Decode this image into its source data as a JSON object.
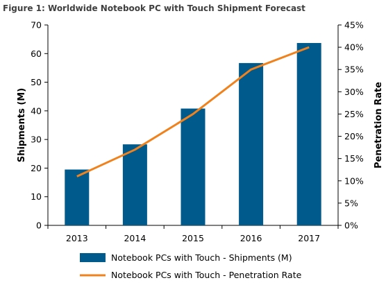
{
  "figure": {
    "title": "Figure 1: Worldwide Notebook PC with Touch Shipment Forecast"
  },
  "chart_data": {
    "type": "bar",
    "categories": [
      "2013",
      "2014",
      "2015",
      "2016",
      "2017"
    ],
    "series": [
      {
        "name": "Notebook PCs with Touch - Shipments (M)",
        "type": "bar",
        "axis": "left",
        "values": [
          19.5,
          28.3,
          40.8,
          56.7,
          63.7
        ]
      },
      {
        "name": "Notebook PCs with Touch - Penetration Rate",
        "type": "line",
        "axis": "right",
        "values": [
          11,
          17,
          25,
          35,
          40
        ]
      }
    ],
    "ylabel": "Shipments (M)",
    "ylabel_right": "Penetration Rate",
    "ylim": [
      0,
      70
    ],
    "yticks": [
      "0",
      "10",
      "20",
      "30",
      "40",
      "50",
      "60",
      "70"
    ],
    "ylim_right": [
      0,
      45
    ],
    "yticks_right": [
      "0%",
      "5%",
      "10%",
      "15%",
      "20%",
      "25%",
      "30%",
      "35%",
      "40%",
      "45%"
    ],
    "grid": false,
    "legend_position": "bottom",
    "colors": {
      "bar": "#005a8c",
      "line": "#f0821e",
      "axis": "#000000"
    }
  }
}
